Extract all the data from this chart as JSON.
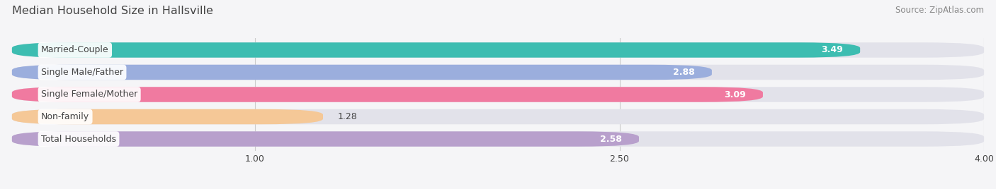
{
  "title": "Median Household Size in Hallsville",
  "source": "Source: ZipAtlas.com",
  "categories": [
    "Married-Couple",
    "Single Male/Father",
    "Single Female/Mother",
    "Non-family",
    "Total Households"
  ],
  "values": [
    3.49,
    2.88,
    3.09,
    1.28,
    2.58
  ],
  "bar_colors": [
    "#3dbdb1",
    "#9baedd",
    "#f07aa0",
    "#f5c897",
    "#b8a0cc"
  ],
  "bar_bg_color": "#e2e2ea",
  "xlim": [
    0,
    4.0
  ],
  "xticks": [
    1.0,
    2.5,
    4.0
  ],
  "figsize": [
    14.06,
    2.68
  ],
  "dpi": 100,
  "label_color": "#444444",
  "value_color": "#ffffff",
  "title_color": "#444444",
  "background_color": "#f5f5f7"
}
